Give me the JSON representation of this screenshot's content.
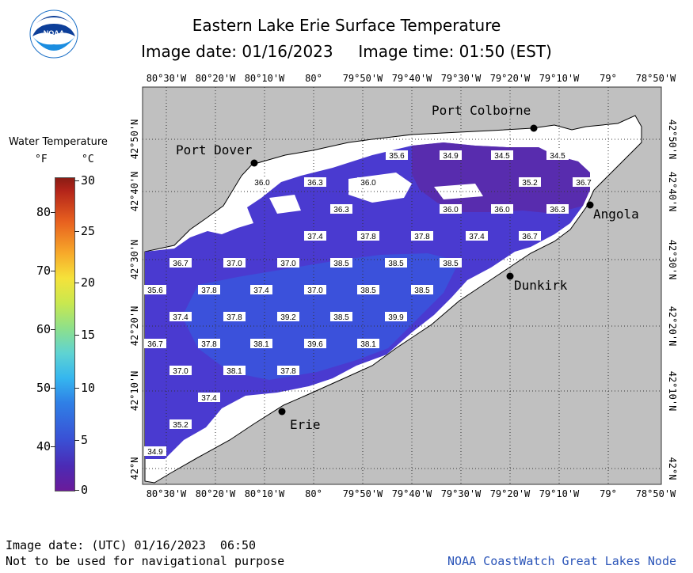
{
  "header": {
    "title": "Eastern Lake Erie Surface Temperature",
    "subtitle": "Image date: 01/16/2023     Image time: 01:50 (EST)"
  },
  "logo": {
    "icon": "noaa-logo-icon",
    "text": "NOAA"
  },
  "legend": {
    "title": "Water Temperature",
    "unit_f": "°F",
    "unit_c": "°C",
    "f_ticks": [
      "80",
      "70",
      "60",
      "50",
      "40"
    ],
    "c_ticks": [
      "30",
      "25",
      "20",
      "15",
      "10",
      "5",
      "0"
    ]
  },
  "map": {
    "lon_labels": [
      "80°30'W",
      "80°20'W",
      "80°10'W",
      "80°",
      "79°50'W",
      "79°40'W",
      "79°30'W",
      "79°20'W",
      "79°10'W",
      "79°",
      "78°50'W"
    ],
    "lat_labels": [
      "42°50'N",
      "42°40'N",
      "42°30'N",
      "42°20'N",
      "42°10'N",
      "42°N"
    ],
    "cities": [
      {
        "name": "Port Colborne"
      },
      {
        "name": "Port Dover"
      },
      {
        "name": "Angola"
      },
      {
        "name": "Dunkirk"
      },
      {
        "name": "Erie"
      }
    ],
    "temps": [
      "35.6",
      "34.9",
      "34.5",
      "34.5",
      "36.0",
      "36.3",
      "36.0",
      "35.2",
      "36.7",
      "36.3",
      "36.0",
      "36.0",
      "36.3",
      "37.4",
      "37.8",
      "37.8",
      "37.4",
      "36.7",
      "36.7",
      "37.0",
      "37.0",
      "38.5",
      "38.5",
      "38.5",
      "35.6",
      "37.8",
      "37.4",
      "37.0",
      "38.5",
      "38.5",
      "37.4",
      "37.8",
      "39.2",
      "38.5",
      "39.9",
      "36.7",
      "37.8",
      "38.1",
      "39.6",
      "38.1",
      "37.0",
      "38.1",
      "37.8",
      "37.4",
      "35.2",
      "34.9"
    ],
    "colors": {
      "land": "#c0c0c0",
      "ice": "#ffffff",
      "water_cold": "#5a2db0",
      "water_mid": "#3c47d6",
      "water_warm": "#3a5fe0"
    }
  },
  "footer": {
    "utc_date": "Image date: (UTC) 01/16/2023  06:50",
    "disclaimer": "Not to be used for navigational purpose",
    "source": "NOAA CoastWatch Great Lakes Node"
  }
}
